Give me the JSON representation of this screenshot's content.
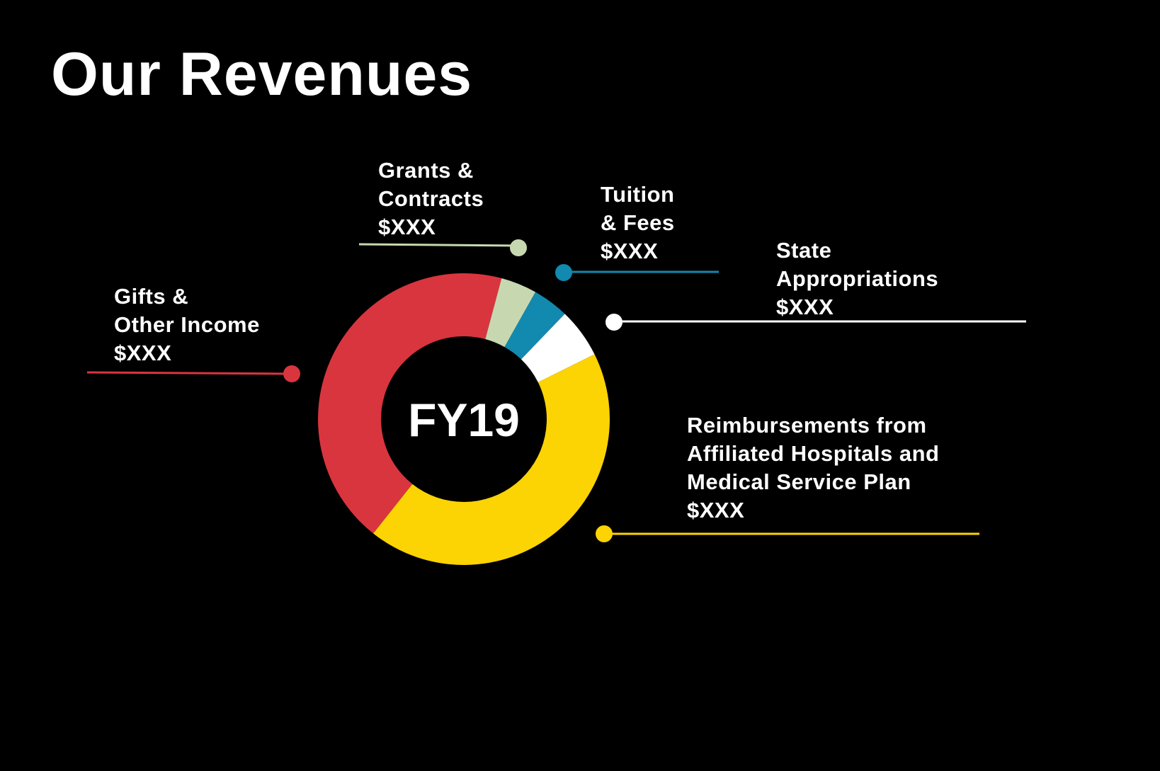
{
  "title": "Our Revenues",
  "center_label": "FY19",
  "colors": {
    "background": "#000000",
    "text": "#ffffff",
    "gifts": "#d9353f",
    "grants": "#c7d8b1",
    "tuition": "#1289ae",
    "state": "#ffffff",
    "reimbursements": "#fcd303"
  },
  "chart_data": {
    "type": "pie",
    "title": "Our Revenues",
    "center_text": "FY19",
    "donut": true,
    "categories": [
      "Gifts & Other Income",
      "Grants & Contracts",
      "Tuition & Fees",
      "State Appropriations",
      "Reimbursements from Affiliated Hospitals and Medical Service Plan"
    ],
    "series": [
      {
        "values": [
          43.5,
          4,
          4,
          5.5,
          43
        ]
      }
    ],
    "slices": [
      {
        "key": "gifts",
        "name_lines": [
          "Gifts &",
          "Other Income"
        ],
        "value_label": "$XXX",
        "value": 43.5,
        "color": "#d9353f"
      },
      {
        "key": "grants",
        "name_lines": [
          "Grants &",
          "Contracts"
        ],
        "value_label": "$XXX",
        "value": 4,
        "color": "#c7d8b1"
      },
      {
        "key": "tuition",
        "name_lines": [
          "Tuition",
          "& Fees"
        ],
        "value_label": "$XXX",
        "value": 4,
        "color": "#1289ae"
      },
      {
        "key": "state",
        "name_lines": [
          "State",
          "Appropriations"
        ],
        "value_label": "$XXX",
        "value": 5.5,
        "color": "#ffffff"
      },
      {
        "key": "reimbursements",
        "name_lines": [
          "Reimbursements from",
          "Affiliated Hospitals and",
          "Medical Service Plan"
        ],
        "value_label": "$XXX",
        "value": 43,
        "color": "#fcd303"
      }
    ],
    "legend": "callout-labels"
  }
}
